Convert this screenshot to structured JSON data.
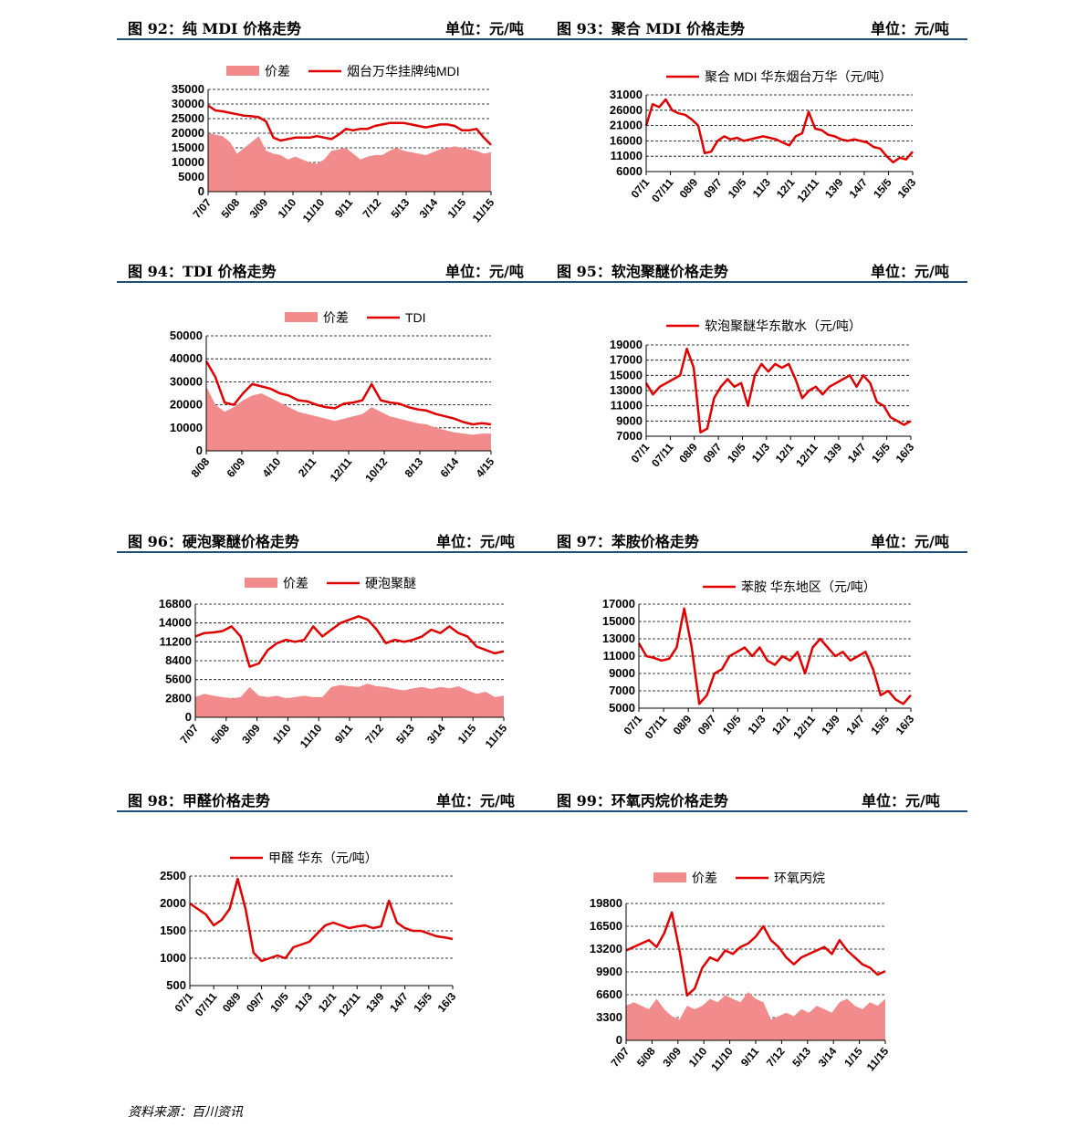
{
  "headers": [
    {
      "title": "图 92：纯 MDI 价格走势",
      "unit": "单位：元/吨"
    },
    {
      "title": "图 93：聚合 MDI 价格走势",
      "unit": "单位：元/吨"
    },
    {
      "title": "图 94：TDI 价格走势",
      "unit": "单位：元/吨"
    },
    {
      "title": "图 95：软泡聚醚价格走势",
      "unit": "单位：元/吨"
    },
    {
      "title": "图 96：硬泡聚醚价格走势",
      "unit": "单位：元/吨"
    },
    {
      "title": "图 97：苯胺价格走势",
      "unit": "单位：元/吨"
    },
    {
      "title": "图 98：甲醛价格走势",
      "unit": "单位：元/吨"
    },
    {
      "title": "图 99：环氧丙烷价格走势",
      "unit": "单位：元/吨"
    }
  ],
  "source": "资料来源：百川资讯",
  "colors": {
    "line": "#e00000",
    "area": "#f28b8b",
    "rule": "#1f4e79"
  },
  "chart_data": [
    {
      "type": "line",
      "id": "c92",
      "legend": [
        "价差",
        "烟台万华挂牌纯MDI"
      ],
      "yticks": [
        0,
        5000,
        10000,
        15000,
        20000,
        25000,
        30000,
        35000
      ],
      "ylim": [
        0,
        35000
      ],
      "xticks": [
        "7/07",
        "5/08",
        "3/09",
        "1/10",
        "11/10",
        "9/11",
        "7/12",
        "5/13",
        "3/14",
        "1/15",
        "11/15"
      ],
      "series": [
        {
          "name": "价差",
          "kind": "area",
          "values": [
            20000,
            19500,
            19000,
            17000,
            13000,
            15000,
            17000,
            19000,
            14000,
            13000,
            12500,
            11000,
            12000,
            11000,
            10000,
            9500,
            11000,
            14000,
            14500,
            15000,
            13000,
            11000,
            12000,
            12500,
            12500,
            14000,
            15000,
            14000,
            13500,
            13000,
            12500,
            13500,
            14500,
            15000,
            15500,
            15000,
            14500,
            14000,
            13000,
            13500
          ]
        },
        {
          "name": "烟台万华挂牌纯MDI",
          "kind": "line",
          "values": [
            29500,
            27800,
            27500,
            27000,
            26500,
            26000,
            25800,
            25500,
            24000,
            18500,
            17500,
            18000,
            18500,
            18500,
            18500,
            19000,
            18500,
            18000,
            19500,
            21500,
            21000,
            21500,
            21500,
            22500,
            23000,
            23500,
            23500,
            23500,
            23000,
            22500,
            22000,
            22500,
            23000,
            23000,
            22500,
            21000,
            21000,
            21500,
            18500,
            16000
          ]
        }
      ]
    },
    {
      "type": "line",
      "id": "c93",
      "legend": [
        "聚合 MDI 华东烟台万华（元/吨）"
      ],
      "yticks": [
        6000,
        11000,
        16000,
        21000,
        26000,
        31000
      ],
      "ylim": [
        6000,
        31000
      ],
      "xticks": [
        "07/1",
        "07/11",
        "08/9",
        "09/7",
        "10/5",
        "11/3",
        "12/1",
        "12/11",
        "13/9",
        "14/7",
        "15/5",
        "16/3"
      ],
      "series": [
        {
          "name": "聚合 MDI 华东烟台万华（元/吨）",
          "kind": "line",
          "values": [
            21000,
            28000,
            27000,
            29500,
            26000,
            25000,
            24500,
            23000,
            21000,
            12000,
            12500,
            16000,
            17500,
            16500,
            17000,
            16000,
            16500,
            17000,
            17500,
            17000,
            16500,
            15500,
            14500,
            17500,
            18500,
            25500,
            20000,
            19500,
            18000,
            17500,
            16500,
            16000,
            16500,
            16000,
            15500,
            14000,
            13500,
            11000,
            9000,
            10500,
            10000,
            12500
          ]
        }
      ]
    },
    {
      "type": "line",
      "id": "c94",
      "legend": [
        "价差",
        "TDI"
      ],
      "yticks": [
        0,
        10000,
        20000,
        30000,
        40000,
        50000
      ],
      "ylim": [
        0,
        50000
      ],
      "xticks": [
        "8/08",
        "6/09",
        "4/10",
        "2/11",
        "12/11",
        "10/12",
        "8/13",
        "6/14",
        "4/15"
      ],
      "series": [
        {
          "name": "价差",
          "kind": "area",
          "values": [
            28000,
            20000,
            17000,
            19000,
            22000,
            24000,
            25000,
            23000,
            21000,
            19000,
            17000,
            16000,
            15000,
            14000,
            13000,
            14000,
            15000,
            16000,
            19000,
            17000,
            15000,
            14000,
            13000,
            12000,
            11500,
            10000,
            9000,
            8000,
            7500,
            7000,
            7500,
            7500
          ]
        },
        {
          "name": "TDI",
          "kind": "line",
          "values": [
            39000,
            32000,
            21000,
            20000,
            25000,
            29000,
            28000,
            27000,
            25000,
            24000,
            22000,
            21500,
            20000,
            19000,
            18500,
            20500,
            21000,
            22000,
            29000,
            22000,
            21000,
            20500,
            19000,
            18000,
            17500,
            16000,
            15000,
            14000,
            12500,
            11500,
            12000,
            11500
          ]
        }
      ]
    },
    {
      "type": "line",
      "id": "c95",
      "legend": [
        "软泡聚醚华东散水（元/吨）"
      ],
      "yticks": [
        7000,
        9000,
        11000,
        13000,
        15000,
        17000,
        19000
      ],
      "ylim": [
        7000,
        19000
      ],
      "xticks": [
        "07/1",
        "07/11",
        "08/9",
        "09/7",
        "10/5",
        "11/3",
        "12/1",
        "12/11",
        "13/9",
        "14/7",
        "15/5",
        "16/3"
      ],
      "series": [
        {
          "name": "软泡聚醚华东散水（元/吨）",
          "kind": "line",
          "values": [
            14000,
            12500,
            13500,
            14000,
            14500,
            15000,
            18500,
            16000,
            7500,
            8000,
            12000,
            13500,
            14500,
            13500,
            14000,
            11000,
            15000,
            16500,
            15500,
            16500,
            16000,
            16500,
            14500,
            12000,
            13000,
            13500,
            12500,
            13500,
            14000,
            14500,
            15000,
            13500,
            15000,
            14000,
            11500,
            11000,
            9500,
            9000,
            8500,
            9000
          ]
        }
      ]
    },
    {
      "type": "line",
      "id": "c96",
      "legend": [
        "价差",
        "硬泡聚醚"
      ],
      "yticks": [
        0,
        2800,
        5600,
        8400,
        11200,
        14000,
        16800
      ],
      "ylim": [
        0,
        16800
      ],
      "xticks": [
        "7/07",
        "5/08",
        "3/09",
        "1/10",
        "11/10",
        "9/11",
        "7/12",
        "5/13",
        "3/14",
        "1/15",
        "11/15"
      ],
      "series": [
        {
          "name": "价差",
          "kind": "area",
          "values": [
            3000,
            3500,
            3200,
            3000,
            2800,
            3000,
            4500,
            3200,
            3000,
            3200,
            2800,
            3000,
            3200,
            3000,
            3000,
            4500,
            4800,
            4600,
            4500,
            5000,
            4600,
            4500,
            4200,
            4000,
            4300,
            4500,
            4200,
            4500,
            4300,
            4600,
            4000,
            3500,
            3800,
            3000,
            3200
          ]
        },
        {
          "name": "硬泡聚醚",
          "kind": "line",
          "values": [
            12000,
            12500,
            12600,
            12800,
            13500,
            12000,
            7500,
            8000,
            10000,
            11000,
            11500,
            11200,
            11500,
            13500,
            12000,
            13000,
            14000,
            14500,
            15000,
            14500,
            13000,
            11000,
            11500,
            11200,
            11500,
            12000,
            13000,
            12500,
            13500,
            12500,
            12000,
            10500,
            10000,
            9500,
            9800
          ]
        }
      ]
    },
    {
      "type": "line",
      "id": "c97",
      "legend": [
        "苯胺 华东地区（元/吨）"
      ],
      "yticks": [
        5000,
        7000,
        9000,
        11000,
        13000,
        15000,
        17000
      ],
      "ylim": [
        5000,
        17000
      ],
      "xticks": [
        "07/1",
        "07/11",
        "08/9",
        "09/7",
        "10/5",
        "11/3",
        "12/1",
        "12/11",
        "13/9",
        "14/7",
        "15/5",
        "16/3"
      ],
      "series": [
        {
          "name": "苯胺 华东地区（元/吨）",
          "kind": "line",
          "values": [
            12500,
            11000,
            10800,
            10500,
            10700,
            12000,
            16500,
            12000,
            5500,
            6500,
            9000,
            9500,
            11000,
            11500,
            12000,
            11000,
            12000,
            10500,
            10000,
            11000,
            10500,
            11500,
            9000,
            12000,
            13000,
            12000,
            11000,
            11500,
            10500,
            11000,
            11500,
            9500,
            6500,
            7000,
            6000,
            5500,
            6500
          ]
        }
      ]
    },
    {
      "type": "line",
      "id": "c98",
      "legend": [
        "甲醛 华东（元/吨）"
      ],
      "yticks": [
        500,
        1000,
        1500,
        2000,
        2500
      ],
      "ylim": [
        500,
        2500
      ],
      "xticks": [
        "07/1",
        "07/11",
        "08/9",
        "09/7",
        "10/5",
        "11/3",
        "12/1",
        "12/11",
        "13/9",
        "14/7",
        "15/5",
        "16/3"
      ],
      "series": [
        {
          "name": "甲醛 华东（元/吨）",
          "kind": "line",
          "values": [
            2000,
            1900,
            1800,
            1600,
            1700,
            1900,
            2450,
            1900,
            1100,
            950,
            1000,
            1050,
            1000,
            1200,
            1250,
            1300,
            1450,
            1600,
            1650,
            1600,
            1550,
            1580,
            1600,
            1550,
            1580,
            2050,
            1650,
            1550,
            1500,
            1500,
            1450,
            1400,
            1380,
            1350
          ]
        }
      ]
    },
    {
      "type": "line",
      "id": "c99",
      "legend": [
        "价差",
        "环氧丙烷"
      ],
      "yticks": [
        0,
        3300,
        6600,
        9900,
        13200,
        16500,
        19800
      ],
      "ylim": [
        0,
        19800
      ],
      "xticks": [
        "7/07",
        "5/08",
        "3/09",
        "1/10",
        "11/10",
        "9/11",
        "7/12",
        "5/13",
        "3/14",
        "1/15",
        "11/15"
      ],
      "series": [
        {
          "name": "价差",
          "kind": "area",
          "values": [
            5000,
            5500,
            5000,
            4500,
            6000,
            4500,
            3500,
            3000,
            5000,
            4500,
            5000,
            6000,
            5500,
            6500,
            6000,
            5500,
            7000,
            6000,
            5500,
            3000,
            3500,
            4000,
            3500,
            4500,
            4000,
            5000,
            4500,
            4000,
            5500,
            6000,
            5000,
            4500,
            5500,
            5000,
            6000
          ]
        },
        {
          "name": "环氧丙烷",
          "kind": "line",
          "values": [
            13000,
            13500,
            14000,
            14500,
            13500,
            15500,
            18500,
            13000,
            6500,
            7500,
            10500,
            12000,
            11500,
            13000,
            12500,
            13500,
            14000,
            15000,
            16500,
            14500,
            13500,
            12000,
            11000,
            12000,
            12500,
            13000,
            13500,
            12500,
            14500,
            13000,
            12000,
            11000,
            10500,
            9500,
            10000
          ]
        }
      ]
    }
  ]
}
